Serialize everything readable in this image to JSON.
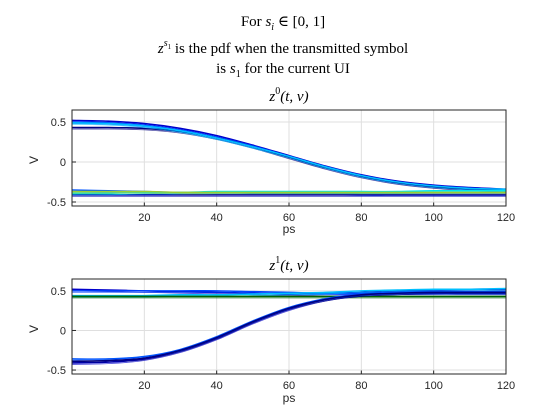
{
  "header": {
    "line1_prefix": "For ",
    "line1_var": "s",
    "line1_sub": "i",
    "line1_suffix": " ∈ [0, 1]",
    "line2_var": "z",
    "line2_sup_var": "s",
    "line2_sup_sub": "1",
    "line2_text": " is the pdf when the transmitted symbol",
    "line3_prefix": "is ",
    "line3_var": "s",
    "line3_sub": "1",
    "line3_suffix": " for the current UI"
  },
  "chart_data": [
    {
      "type": "line",
      "title": "z0(t, v)",
      "title_parts": {
        "var": "z",
        "sup": "0",
        "args": "(t, v)"
      },
      "xlabel": "ps",
      "ylabel": "V",
      "xlim": [
        0,
        120
      ],
      "ylim": [
        -0.55,
        0.65
      ],
      "xticks": [
        20,
        40,
        60,
        80,
        100,
        120
      ],
      "yticks": [
        -0.5,
        0,
        0.5
      ],
      "ytick_labels": [
        "-0.5",
        "0",
        "0.5"
      ],
      "grid": true,
      "series": [
        {
          "color": "#0000cc",
          "x": [
            0,
            10,
            20,
            30,
            40,
            50,
            60,
            70,
            80,
            90,
            100,
            110,
            120
          ],
          "y": [
            0.52,
            0.51,
            0.48,
            0.42,
            0.33,
            0.21,
            0.08,
            -0.05,
            -0.16,
            -0.24,
            -0.29,
            -0.32,
            -0.34
          ]
        },
        {
          "color": "#0044ff",
          "x": [
            0,
            10,
            20,
            30,
            40,
            50,
            60,
            70,
            80,
            90,
            100,
            110,
            120
          ],
          "y": [
            0.5,
            0.49,
            0.46,
            0.4,
            0.31,
            0.2,
            0.07,
            -0.06,
            -0.17,
            -0.25,
            -0.3,
            -0.33,
            -0.35
          ]
        },
        {
          "color": "#000080",
          "x": [
            0,
            10,
            20,
            30,
            40,
            50,
            60,
            70,
            80,
            90,
            100,
            110,
            120
          ],
          "y": [
            0.43,
            0.43,
            0.42,
            0.38,
            0.3,
            0.19,
            0.06,
            -0.07,
            -0.18,
            -0.26,
            -0.31,
            -0.34,
            -0.36
          ]
        },
        {
          "color": "#00bfff",
          "x": [
            0,
            10,
            20,
            30,
            40,
            50,
            60,
            70,
            80,
            90,
            100,
            110,
            120
          ],
          "y": [
            0.49,
            0.48,
            0.45,
            0.39,
            0.3,
            0.19,
            0.07,
            -0.06,
            -0.17,
            -0.25,
            -0.3,
            -0.33,
            -0.34
          ]
        },
        {
          "color": "#0055ff",
          "x": [
            0,
            10,
            20,
            30,
            40,
            50,
            60,
            70,
            80,
            90,
            100,
            110,
            120
          ],
          "y": [
            -0.35,
            -0.36,
            -0.37,
            -0.38,
            -0.38,
            -0.39,
            -0.39,
            -0.39,
            -0.4,
            -0.4,
            -0.4,
            -0.4,
            -0.4
          ]
        },
        {
          "color": "#0000b0",
          "x": [
            0,
            10,
            20,
            30,
            40,
            50,
            60,
            70,
            80,
            90,
            100,
            110,
            120
          ],
          "y": [
            -0.41,
            -0.41,
            -0.41,
            -0.41,
            -0.41,
            -0.41,
            -0.41,
            -0.41,
            -0.41,
            -0.41,
            -0.41,
            -0.41,
            -0.41
          ]
        },
        {
          "color": "#00e5ee",
          "x": [
            0,
            10,
            20,
            30,
            40,
            50,
            60,
            70,
            80,
            90,
            100,
            110,
            120
          ],
          "y": [
            -0.39,
            -0.39,
            -0.38,
            -0.38,
            -0.37,
            -0.37,
            -0.37,
            -0.37,
            -0.37,
            -0.37,
            -0.36,
            -0.36,
            -0.36
          ]
        },
        {
          "color": "#9acd32",
          "x": [
            0,
            10,
            20,
            30,
            40,
            50,
            60,
            70,
            80,
            90,
            100,
            110,
            120
          ],
          "y": [
            -0.37,
            -0.37,
            -0.37,
            -0.38,
            -0.38,
            -0.38,
            -0.38,
            -0.38,
            -0.38,
            -0.38,
            -0.38,
            -0.38,
            -0.38
          ]
        }
      ]
    },
    {
      "type": "line",
      "title": "z1(t, v)",
      "title_parts": {
        "var": "z",
        "sup": "1",
        "args": "(t, v)"
      },
      "xlabel": "ps",
      "ylabel": "V",
      "xlim": [
        0,
        120
      ],
      "ylim": [
        -0.55,
        0.65
      ],
      "xticks": [
        20,
        40,
        60,
        80,
        100,
        120
      ],
      "yticks": [
        -0.5,
        0,
        0.5
      ],
      "ytick_labels": [
        "-0.5",
        "0",
        "0.5"
      ],
      "grid": true,
      "series": [
        {
          "color": "#0000cc",
          "x": [
            0,
            10,
            20,
            30,
            40,
            50,
            60,
            70,
            80,
            90,
            100,
            110,
            120
          ],
          "y": [
            0.52,
            0.51,
            0.5,
            0.49,
            0.48,
            0.47,
            0.46,
            0.47,
            0.48,
            0.5,
            0.51,
            0.52,
            0.52
          ]
        },
        {
          "color": "#0044ff",
          "x": [
            0,
            10,
            20,
            30,
            40,
            50,
            60,
            70,
            80,
            90,
            100,
            110,
            120
          ],
          "y": [
            0.5,
            0.5,
            0.5,
            0.5,
            0.5,
            0.49,
            0.48,
            0.47,
            0.47,
            0.47,
            0.47,
            0.47,
            0.47
          ]
        },
        {
          "color": "#00bfff",
          "x": [
            0,
            10,
            20,
            30,
            40,
            50,
            60,
            70,
            80,
            90,
            100,
            110,
            120
          ],
          "y": [
            0.44,
            0.44,
            0.44,
            0.45,
            0.45,
            0.46,
            0.47,
            0.48,
            0.5,
            0.51,
            0.52,
            0.52,
            0.53
          ]
        },
        {
          "color": "#006400",
          "x": [
            0,
            10,
            20,
            30,
            40,
            50,
            60,
            70,
            80,
            90,
            100,
            110,
            120
          ],
          "y": [
            0.43,
            0.43,
            0.43,
            0.43,
            0.43,
            0.43,
            0.43,
            0.43,
            0.43,
            0.43,
            0.43,
            0.43,
            0.43
          ]
        },
        {
          "color": "#0000cc",
          "x": [
            0,
            10,
            20,
            30,
            40,
            50,
            60,
            70,
            80,
            90,
            100,
            110,
            120
          ],
          "y": [
            -0.41,
            -0.4,
            -0.36,
            -0.26,
            -0.1,
            0.1,
            0.27,
            0.39,
            0.45,
            0.47,
            0.48,
            0.48,
            0.48
          ]
        },
        {
          "color": "#0055ff",
          "x": [
            0,
            10,
            20,
            30,
            40,
            50,
            60,
            70,
            80,
            90,
            100,
            110,
            120
          ],
          "y": [
            -0.36,
            -0.36,
            -0.33,
            -0.24,
            -0.08,
            0.12,
            0.29,
            0.4,
            0.46,
            0.48,
            0.49,
            0.49,
            0.49
          ]
        },
        {
          "color": "#000080",
          "x": [
            0,
            10,
            20,
            30,
            40,
            50,
            60,
            70,
            80,
            90,
            100,
            110,
            120
          ],
          "y": [
            -0.39,
            -0.38,
            -0.35,
            -0.25,
            -0.09,
            0.11,
            0.28,
            0.39,
            0.45,
            0.47,
            0.48,
            0.48,
            0.48
          ]
        }
      ]
    }
  ]
}
